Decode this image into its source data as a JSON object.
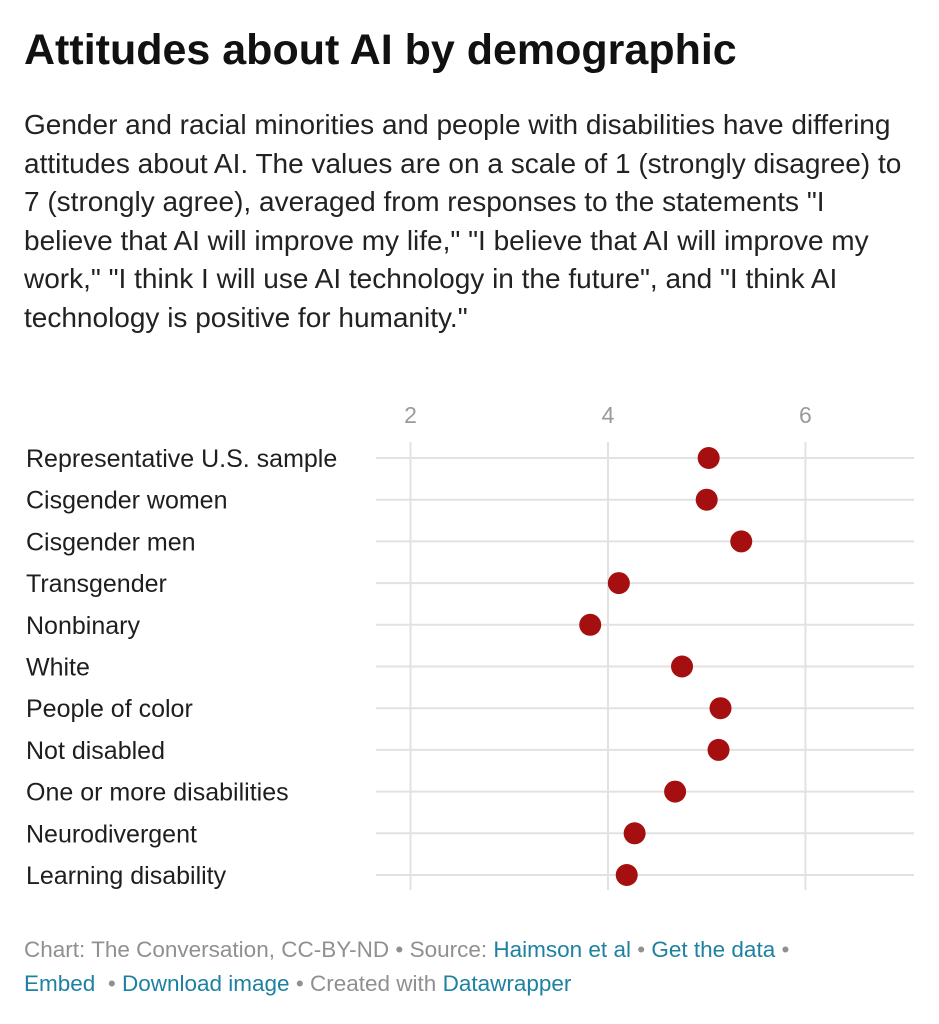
{
  "title": "Attitudes about AI by demographic",
  "subtitle": "Gender and racial minorities and people with disabilities have differing attitudes about AI. The values are on a scale of 1 (strongly disagree) to 7 (strongly agree), averaged from responses to the statements \"I believe that AI will improve my life,\" \"I believe that AI will improve my work,\" \"I think I will use AI technology in the future\", and \"I think AI technology is positive for humanity.\"",
  "chart_data": {
    "type": "scatter",
    "orientation": "horizontal-dot-plot",
    "title": "",
    "xlabel": "",
    "ylabel": "",
    "xlim": [
      1.65,
      7.1
    ],
    "x_ticks": [
      2,
      4,
      6
    ],
    "grid": true,
    "point_color": "#a50f0f",
    "categories": [
      "Representative U.S. sample",
      "Cisgender women",
      "Cisgender men",
      "Transgender",
      "Nonbinary",
      "White",
      "People of color",
      "Not disabled",
      "One or more disabilities",
      "Neurodivergent",
      "Learning disability"
    ],
    "values": [
      5.02,
      5.0,
      5.35,
      4.11,
      3.82,
      4.75,
      5.14,
      5.12,
      4.68,
      4.27,
      4.19
    ]
  },
  "footer": {
    "chart_credit": "Chart: The Conversation, CC-BY-ND",
    "source_prefix": "Source:",
    "source_link": "Haimson et al",
    "get_data": "Get the data",
    "embed": "Embed",
    "download": "Download image",
    "created_with": "Created with",
    "datawrapper": "Datawrapper",
    "separator": "•"
  }
}
